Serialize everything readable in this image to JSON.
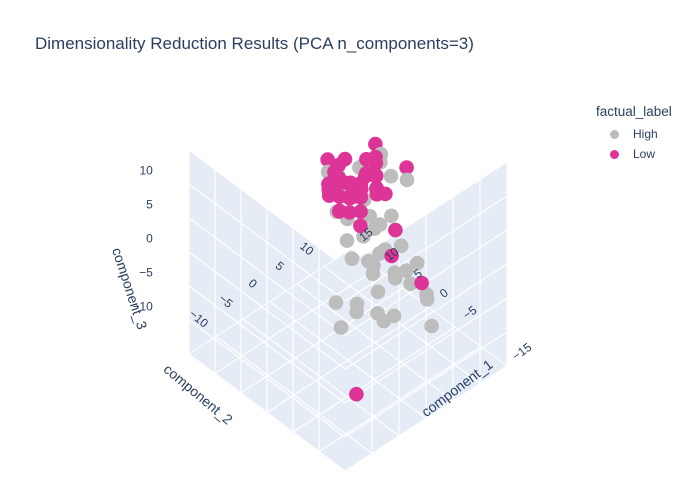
{
  "title": "Dimensionality Reduction Results (PCA n_components=3)",
  "legend": {
    "title": "factual_label",
    "items": [
      {
        "label": "High",
        "color": "#bdbdbd"
      },
      {
        "label": "Low",
        "color": "#dd3497"
      }
    ]
  },
  "chart_data": {
    "type": "scatter",
    "title": "Dimensionality Reduction Results (PCA n_components=3)",
    "axis_labels": {
      "x": "component_1",
      "y": "component_2",
      "z": "component_3"
    },
    "ticks": {
      "x": [
        "15",
        "10",
        "5",
        "0",
        "−5",
        "−15"
      ],
      "y": [
        "−10",
        "−5",
        "0",
        "5",
        "10"
      ],
      "z": [
        "10",
        "5",
        "0",
        "−5",
        "−10"
      ]
    },
    "grid": true,
    "legend_position": "top-right",
    "series": [
      {
        "name": "High",
        "color": "#bdbdbd",
        "points": [
          [
            -14,
            -8,
            4
          ],
          [
            -12,
            -6,
            5
          ],
          [
            -11,
            -9,
            3
          ],
          [
            -10,
            -5,
            6
          ],
          [
            -9,
            -7,
            2
          ],
          [
            -13,
            -4,
            1
          ],
          [
            -8,
            -3,
            5
          ],
          [
            -7,
            -6,
            7
          ],
          [
            -6,
            -2,
            4
          ],
          [
            -5,
            -5,
            8
          ],
          [
            -4,
            -1,
            6
          ],
          [
            -3,
            -3,
            9
          ],
          [
            -2,
            -4,
            10
          ],
          [
            -1,
            0,
            11
          ],
          [
            0,
            -2,
            12
          ],
          [
            1,
            -1,
            13
          ],
          [
            2,
            0,
            9
          ],
          [
            3,
            1,
            10
          ],
          [
            -6,
            -8,
            1
          ],
          [
            -8,
            -9,
            -1
          ],
          [
            -10,
            -3,
            -2
          ],
          [
            -5,
            1,
            3
          ],
          [
            -3,
            2,
            5
          ],
          [
            0,
            3,
            7
          ],
          [
            2,
            3,
            8
          ],
          [
            4,
            2,
            6
          ],
          [
            -2,
            4,
            4
          ],
          [
            1,
            5,
            3
          ],
          [
            -4,
            3,
            2
          ],
          [
            -7,
            2,
            0
          ],
          [
            5,
            4,
            5
          ],
          [
            6,
            3,
            7
          ],
          [
            3,
            5,
            9
          ],
          [
            0,
            6,
            11
          ],
          [
            -1,
            7,
            9
          ],
          [
            -9,
            0,
            3
          ],
          [
            -11,
            1,
            2
          ],
          [
            -12,
            3,
            0
          ],
          [
            -6,
            5,
            -1
          ],
          [
            -4,
            6,
            1
          ],
          [
            7,
            6,
            4
          ],
          [
            8,
            4,
            6
          ],
          [
            4,
            7,
            8
          ],
          [
            2,
            8,
            10
          ],
          [
            -2,
            9,
            8
          ],
          [
            -14,
            2,
            -3
          ],
          [
            -9,
            6,
            -4
          ],
          [
            -5,
            8,
            -2
          ],
          [
            1,
            9,
            1
          ],
          [
            6,
            8,
            2
          ]
        ]
      },
      {
        "name": "Low",
        "color": "#dd3497",
        "points": [
          [
            8,
            8,
            -2
          ],
          [
            9,
            9,
            -1
          ],
          [
            10,
            10,
            0
          ],
          [
            11,
            11,
            -1
          ],
          [
            12,
            12,
            -2
          ],
          [
            10,
            8,
            -3
          ],
          [
            11,
            9,
            -4
          ],
          [
            12,
            10,
            -3
          ],
          [
            13,
            11,
            -2
          ],
          [
            9,
            11,
            -4
          ],
          [
            8,
            10,
            -5
          ],
          [
            10,
            12,
            -3
          ],
          [
            11,
            13,
            -2
          ],
          [
            12,
            14,
            -4
          ],
          [
            13,
            13,
            -5
          ],
          [
            14,
            12,
            -3
          ],
          [
            7,
            9,
            1
          ],
          [
            8,
            11,
            2
          ],
          [
            9,
            12,
            1
          ],
          [
            10,
            13,
            0
          ],
          [
            11,
            14,
            1
          ],
          [
            12,
            11,
            2
          ],
          [
            13,
            10,
            0
          ],
          [
            14,
            11,
            -1
          ],
          [
            9,
            7,
            3
          ],
          [
            7,
            6,
            4
          ],
          [
            6,
            7,
            2
          ],
          [
            5,
            8,
            5
          ],
          [
            8,
            6,
            6
          ],
          [
            10,
            6,
            2
          ],
          [
            11,
            7,
            1
          ],
          [
            12,
            8,
            -1
          ],
          [
            13,
            9,
            -2
          ],
          [
            14,
            10,
            -4
          ],
          [
            15,
            12,
            -5
          ],
          [
            9,
            14,
            -3
          ],
          [
            8,
            13,
            -1
          ],
          [
            7,
            12,
            0
          ],
          [
            6,
            11,
            3
          ],
          [
            5,
            10,
            4
          ],
          [
            4,
            9,
            7
          ],
          [
            3,
            8,
            9
          ],
          [
            2,
            7,
            12
          ],
          [
            -2,
            5,
            8
          ],
          [
            -6,
            3,
            6
          ],
          [
            -10,
            4,
            0
          ],
          [
            -4,
            7,
            12
          ],
          [
            6,
            2,
            10
          ],
          [
            2,
            10,
            -6
          ],
          [
            -12,
            -10,
            -8
          ]
        ]
      }
    ]
  }
}
